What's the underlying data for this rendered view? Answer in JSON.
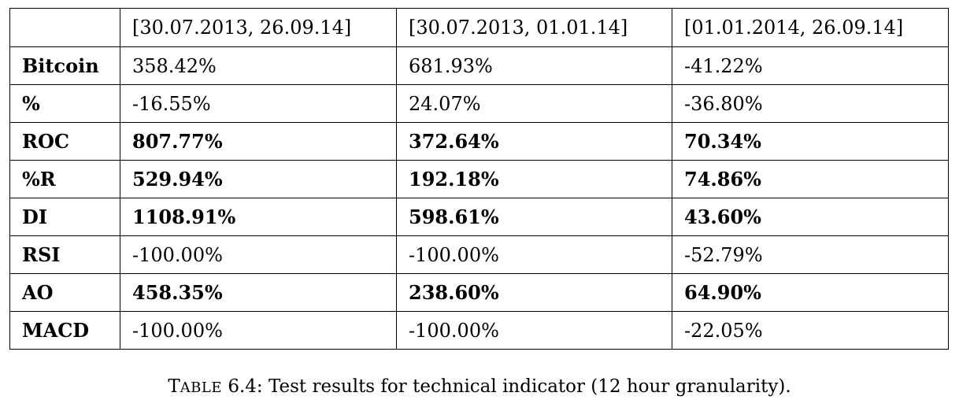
{
  "table": {
    "columns": [
      "",
      "[30.07.2013, 26.09.14]",
      "[30.07.2013, 01.01.14]",
      "[01.01.2014, 26.09.14]"
    ],
    "rows": [
      {
        "label": "Bitcoin",
        "bold": false,
        "values": [
          "358.42%",
          "681.93%",
          "-41.22%"
        ]
      },
      {
        "label": "%",
        "bold": false,
        "values": [
          "-16.55%",
          "24.07%",
          "-36.80%"
        ]
      },
      {
        "label": "ROC",
        "bold": true,
        "values": [
          "807.77%",
          "372.64%",
          "70.34%"
        ]
      },
      {
        "label": "%R",
        "bold": true,
        "values": [
          "529.94%",
          "192.18%",
          "74.86%"
        ]
      },
      {
        "label": "DI",
        "bold": true,
        "values": [
          "1108.91%",
          "598.61%",
          "43.60%"
        ]
      },
      {
        "label": "RSI",
        "bold": false,
        "values": [
          "-100.00%",
          "-100.00%",
          "-52.79%"
        ]
      },
      {
        "label": "AO",
        "bold": true,
        "values": [
          "458.35%",
          "238.60%",
          "64.90%"
        ]
      },
      {
        "label": "MACD",
        "bold": false,
        "values": [
          "-100.00%",
          "-100.00%",
          "-22.05%"
        ]
      }
    ]
  },
  "caption": {
    "lead": "T",
    "smallcaps": "ABLE",
    "rest": " 6.4: Test results for technical indicator (12 hour granularity)."
  }
}
